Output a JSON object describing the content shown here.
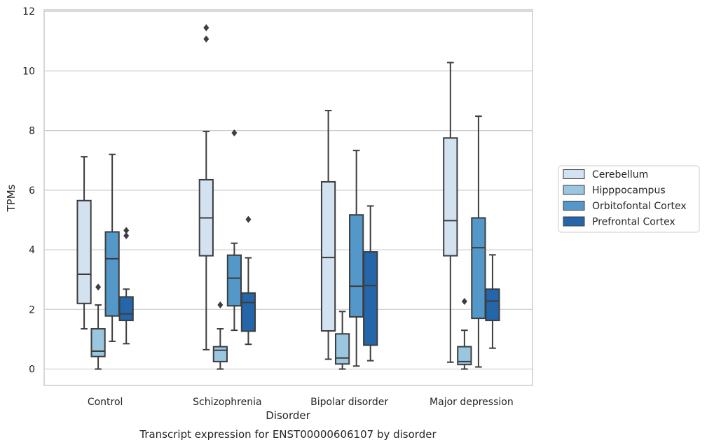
{
  "chart_data": {
    "type": "box",
    "xlabel": "Disorder",
    "ylabel": "TPMs",
    "caption": "Transcript expression for ENST00000606107 by disorder",
    "ylim": [
      -0.55,
      12.05
    ],
    "yticks": [
      0,
      2,
      4,
      6,
      8,
      10,
      12
    ],
    "grid": "horizontal",
    "legend_position": "right",
    "categories": [
      "Control",
      "Schizophrenia",
      "Bipolar disorder",
      "Major depression"
    ],
    "series": [
      {
        "name": "Cerebellum",
        "color": "#d3e2f0",
        "boxes": [
          {
            "whisker_low": 1.35,
            "q1": 2.2,
            "median": 3.18,
            "q3": 5.65,
            "whisker_high": 7.12,
            "outliers": []
          },
          {
            "whisker_low": 0.65,
            "q1": 3.8,
            "median": 5.07,
            "q3": 6.35,
            "whisker_high": 7.97,
            "outliers": [
              11.07,
              11.45
            ]
          },
          {
            "whisker_low": 0.33,
            "q1": 1.28,
            "median": 3.74,
            "q3": 6.28,
            "whisker_high": 8.67,
            "outliers": []
          },
          {
            "whisker_low": 0.23,
            "q1": 3.8,
            "median": 4.98,
            "q3": 7.75,
            "whisker_high": 10.28,
            "outliers": []
          }
        ]
      },
      {
        "name": "Hipppocampus",
        "color": "#9ac6df",
        "boxes": [
          {
            "whisker_low": 0.0,
            "q1": 0.42,
            "median": 0.6,
            "q3": 1.35,
            "whisker_high": 2.15,
            "outliers": [
              2.75
            ]
          },
          {
            "whisker_low": 0.0,
            "q1": 0.25,
            "median": 0.63,
            "q3": 0.75,
            "whisker_high": 1.35,
            "outliers": [
              2.15
            ]
          },
          {
            "whisker_low": 0.0,
            "q1": 0.17,
            "median": 0.37,
            "q3": 1.18,
            "whisker_high": 1.93,
            "outliers": []
          },
          {
            "whisker_low": 0.0,
            "q1": 0.15,
            "median": 0.25,
            "q3": 0.75,
            "whisker_high": 1.3,
            "outliers": [
              2.27
            ]
          }
        ]
      },
      {
        "name": "Orbitofontal Cortex",
        "color": "#5398c8",
        "boxes": [
          {
            "whisker_low": 0.93,
            "q1": 1.78,
            "median": 3.7,
            "q3": 4.6,
            "whisker_high": 7.2,
            "outliers": []
          },
          {
            "whisker_low": 1.3,
            "q1": 2.12,
            "median": 3.05,
            "q3": 3.82,
            "whisker_high": 4.22,
            "outliers": [
              7.92
            ]
          },
          {
            "whisker_low": 0.1,
            "q1": 1.75,
            "median": 2.78,
            "q3": 5.17,
            "whisker_high": 7.33,
            "outliers": []
          },
          {
            "whisker_low": 0.07,
            "q1": 1.7,
            "median": 4.07,
            "q3": 5.07,
            "whisker_high": 8.48,
            "outliers": []
          }
        ]
      },
      {
        "name": "Prefrontal Cortex",
        "color": "#2466a9",
        "boxes": [
          {
            "whisker_low": 0.85,
            "q1": 1.63,
            "median": 1.85,
            "q3": 2.42,
            "whisker_high": 2.68,
            "outliers": [
              4.47,
              4.65
            ]
          },
          {
            "whisker_low": 0.83,
            "q1": 1.27,
            "median": 2.23,
            "q3": 2.55,
            "whisker_high": 3.73,
            "outliers": [
              5.02
            ]
          },
          {
            "whisker_low": 0.28,
            "q1": 0.8,
            "median": 2.8,
            "q3": 3.93,
            "whisker_high": 5.47,
            "outliers": []
          },
          {
            "whisker_low": 0.7,
            "q1": 1.63,
            "median": 2.28,
            "q3": 2.68,
            "whisker_high": 3.83,
            "outliers": []
          }
        ]
      }
    ]
  }
}
